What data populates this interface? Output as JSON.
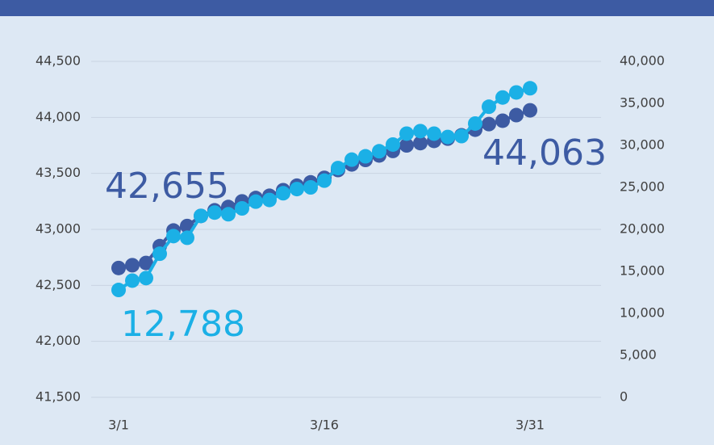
{
  "chart_data": {
    "type": "line",
    "categories": [
      "3/1",
      null,
      null,
      null,
      null,
      null,
      null,
      null,
      null,
      null,
      null,
      null,
      null,
      null,
      null,
      "3/16",
      null,
      null,
      null,
      null,
      null,
      null,
      null,
      null,
      null,
      null,
      null,
      null,
      null,
      null,
      "3/31"
    ],
    "series": [
      {
        "color": "#3d5ba3",
        "axis": "y",
        "values": [
          42655,
          42680,
          42700,
          42850,
          42990,
          43030,
          43120,
          43170,
          43200,
          43250,
          43280,
          43300,
          43350,
          43390,
          43420,
          43460,
          43530,
          43580,
          43620,
          43660,
          43700,
          43750,
          43770,
          43790,
          43810,
          43840,
          43890,
          43940,
          43970,
          44020,
          44063
        ],
        "value_labels": [
          "42,655",
          null,
          null,
          null,
          null,
          null,
          null,
          null,
          null,
          null,
          null,
          null,
          null,
          null,
          null,
          null,
          null,
          null,
          null,
          null,
          null,
          null,
          null,
          null,
          null,
          null,
          null,
          null,
          null,
          null,
          "44,063"
        ]
      },
      {
        "color": "#1bb0e6",
        "axis": "y2",
        "values": [
          12788,
          13900,
          14200,
          17100,
          19200,
          19000,
          21600,
          22000,
          21800,
          22500,
          23300,
          23500,
          24300,
          24800,
          25000,
          25800,
          27300,
          28300,
          28700,
          29300,
          30100,
          31400,
          31700,
          31400,
          31000,
          31100,
          32600,
          34600,
          35700,
          36300,
          36800
        ],
        "value_labels": [
          "12,788",
          null,
          null,
          null,
          null,
          null,
          null,
          null,
          null,
          null,
          null,
          null,
          null,
          null,
          null,
          null,
          null,
          null,
          null,
          null,
          null,
          null,
          null,
          null,
          null,
          null,
          null,
          null,
          null,
          null,
          null
        ]
      }
    ],
    "ylim": [
      41500,
      44500
    ],
    "yticks": [
      {
        "value": 41500,
        "label": "41,500"
      },
      {
        "value": 42000,
        "label": "42,000"
      },
      {
        "value": 42500,
        "label": "42,500"
      },
      {
        "value": 43000,
        "label": "43,000"
      },
      {
        "value": 43500,
        "label": "43,500"
      },
      {
        "value": 44000,
        "label": "44,000"
      },
      {
        "value": 44500,
        "label": "44,500"
      }
    ],
    "y2lim": [
      0,
      40000
    ],
    "y2ticks": [
      0,
      {
        "value": 5000,
        "label": "5,000"
      },
      {
        "value": 10000,
        "label": "10,000"
      },
      {
        "value": 15000,
        "label": "15,000"
      },
      {
        "value": 20000,
        "label": "20,000"
      },
      {
        "value": 25000,
        "label": "25,000"
      },
      {
        "value": 30000,
        "label": "30,000"
      },
      {
        "value": 35000,
        "label": "35,000"
      },
      {
        "value": 40000,
        "label": "40,000"
      }
    ],
    "grid": true
  }
}
